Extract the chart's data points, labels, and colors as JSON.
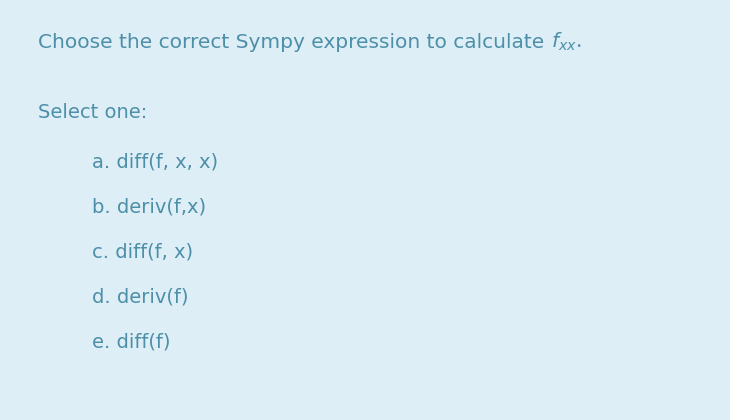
{
  "background_color": "#ddeef6",
  "title_plain": "Choose the correct Sympy expression to calculate ",
  "title_math": "$f_{xx}$.",
  "select_label": "Select one:",
  "options": [
    "a. diff(f, x, x)",
    "b. deriv(f,x)",
    "c. diff(f, x)",
    "d. deriv(f)",
    "e. diff(f)"
  ],
  "text_color": "#4d8fa8",
  "circle_edge_color": "#aac8d8",
  "circle_fill_color": "#e8f4f8",
  "title_fontsize": 14.5,
  "option_fontsize": 14,
  "select_fontsize": 14,
  "fig_width": 7.3,
  "fig_height": 4.2,
  "dpi": 100
}
